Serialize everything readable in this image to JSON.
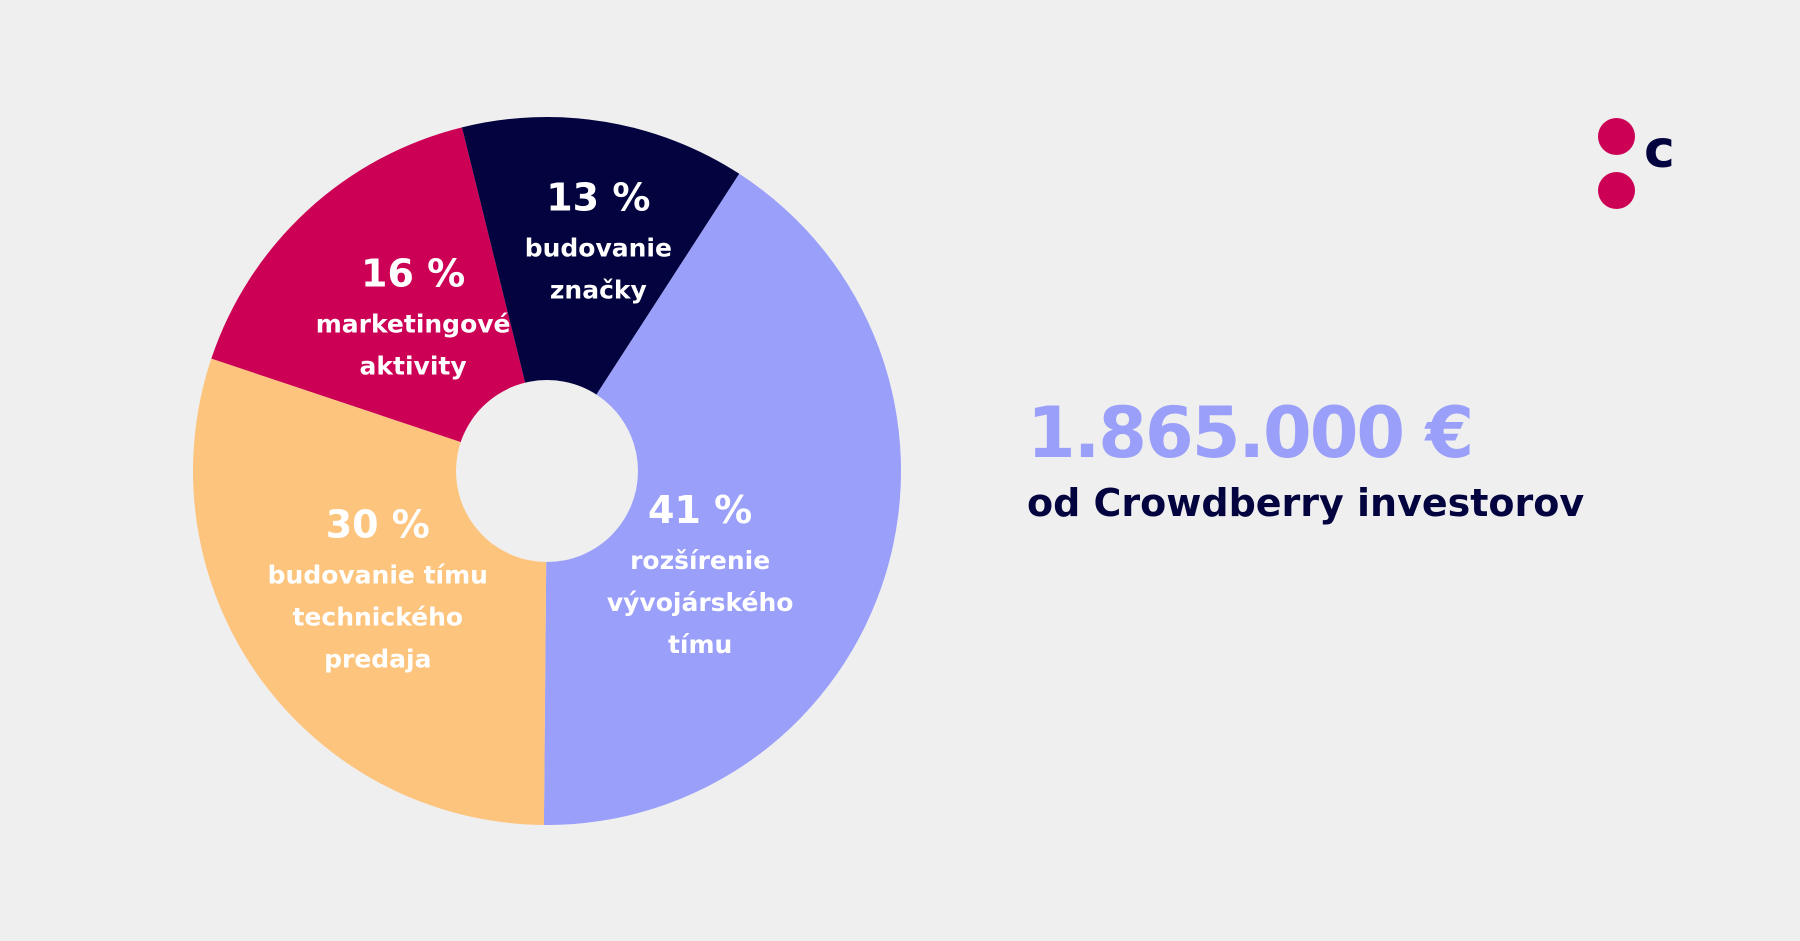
{
  "colors": {
    "background": "#efefef",
    "navy": "#02033f",
    "crimson": "#cc0055",
    "peach": "#fdc47e",
    "lavender": "#9a9ffa",
    "white": "#ffffff"
  },
  "chart_data": {
    "type": "pie",
    "donut": true,
    "legend": "none",
    "slices": [
      {
        "value": 16,
        "label": "16 %",
        "lines": [
          "marketingové",
          "aktivity"
        ],
        "color": "#cc0055"
      },
      {
        "value": 13,
        "label": "13 %",
        "lines": [
          "budovanie",
          "značky"
        ],
        "color": "#02033f"
      },
      {
        "value": 41,
        "label": "41 %",
        "lines": [
          "rozšírenie",
          "vývojárského",
          "tímu"
        ],
        "color": "#9a9ffa"
      },
      {
        "value": 30,
        "label": "30 %",
        "lines": [
          "budovanie tímu",
          "technického",
          "predaja"
        ],
        "color": "#fdc47e"
      }
    ]
  },
  "summary": {
    "amount": "1.865.000 €",
    "subtitle": "od Crowdberry investorov"
  },
  "logo": {
    "letter": "c",
    "icon": "crowdberry-logo-icon"
  }
}
